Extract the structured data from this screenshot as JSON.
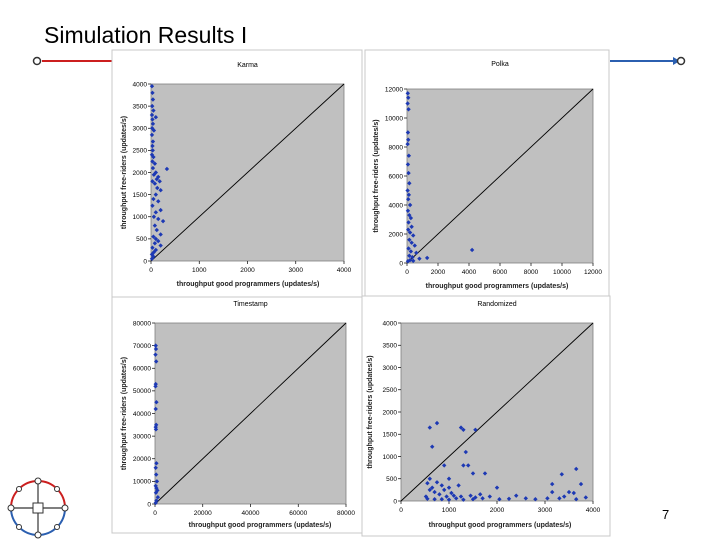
{
  "slide": {
    "title": "Simulation Results I",
    "page_number": "7",
    "accent_colors": {
      "red": "#cc1f1f",
      "blue": "#2b5fb0",
      "point": "#1d39b4",
      "plot_bg": "#c0c0c0"
    }
  },
  "chart_data": [
    {
      "type": "scatter",
      "title": "Karma",
      "xlabel": "throughput good programmers (updates/s)",
      "ylabel": "throughput free-riders (updates/s)",
      "xlim": [
        0,
        4000
      ],
      "ylim": [
        0,
        4000
      ],
      "xticks": [
        0,
        1000,
        2000,
        3000,
        4000
      ],
      "yticks": [
        0,
        500,
        1000,
        1500,
        2000,
        2500,
        3000,
        3500,
        4000
      ],
      "xtick_labels": [
        "0",
        "1000",
        "2000",
        "3000",
        "4000"
      ],
      "ytick_labels": [
        "0",
        "500",
        "1000",
        "1500",
        "2000",
        "2500",
        "3000",
        "3500",
        "4000"
      ],
      "diagonal": true,
      "points": [
        [
          20,
          3950
        ],
        [
          30,
          3800
        ],
        [
          40,
          3650
        ],
        [
          25,
          3500
        ],
        [
          50,
          3400
        ],
        [
          20,
          3300
        ],
        [
          30,
          3200
        ],
        [
          100,
          3250
        ],
        [
          40,
          3100
        ],
        [
          25,
          3000
        ],
        [
          60,
          2950
        ],
        [
          20,
          2850
        ],
        [
          40,
          2700
        ],
        [
          30,
          2600
        ],
        [
          35,
          2500
        ],
        [
          20,
          2400
        ],
        [
          50,
          2350
        ],
        [
          30,
          2250
        ],
        [
          80,
          2200
        ],
        [
          40,
          2100
        ],
        [
          100,
          2000
        ],
        [
          60,
          1950
        ],
        [
          150,
          1900
        ],
        [
          120,
          1850
        ],
        [
          30,
          1800
        ],
        [
          80,
          1750
        ],
        [
          200,
          1600
        ],
        [
          100,
          1500
        ],
        [
          50,
          1400
        ],
        [
          150,
          1350
        ],
        [
          30,
          1250
        ],
        [
          200,
          1150
        ],
        [
          100,
          1100
        ],
        [
          60,
          1000
        ],
        [
          150,
          950
        ],
        [
          250,
          900
        ],
        [
          80,
          800
        ],
        [
          120,
          700
        ],
        [
          200,
          600
        ],
        [
          50,
          550
        ],
        [
          100,
          500
        ],
        [
          150,
          450
        ],
        [
          80,
          400
        ],
        [
          200,
          350
        ],
        [
          30,
          300
        ],
        [
          100,
          250
        ],
        [
          60,
          200
        ],
        [
          20,
          150
        ],
        [
          50,
          100
        ],
        [
          20,
          50
        ],
        [
          330,
          2080
        ],
        [
          180,
          1800
        ],
        [
          130,
          1650
        ]
      ]
    },
    {
      "type": "scatter",
      "title": "Polka",
      "xlabel": "throughput good programmers (updates/s)",
      "ylabel": "throughput free-riders (updates/s)",
      "xlim": [
        0,
        12000
      ],
      "ylim": [
        0,
        12000
      ],
      "xticks": [
        0,
        2000,
        4000,
        6000,
        8000,
        10000,
        12000
      ],
      "yticks": [
        0,
        2000,
        4000,
        6000,
        8000,
        10000,
        12000
      ],
      "xtick_labels": [
        "0",
        "2000",
        "4000",
        "6000",
        "8000",
        "10000",
        "12000"
      ],
      "ytick_labels": [
        "0",
        "2000",
        "4000",
        "6000",
        "8000",
        "10000",
        "12000"
      ],
      "diagonal": true,
      "points": [
        [
          50,
          11700
        ],
        [
          80,
          11400
        ],
        [
          40,
          11000
        ],
        [
          100,
          10600
        ],
        [
          60,
          9000
        ],
        [
          80,
          8500
        ],
        [
          40,
          8200
        ],
        [
          120,
          7400
        ],
        [
          60,
          6800
        ],
        [
          100,
          6200
        ],
        [
          150,
          5500
        ],
        [
          40,
          5000
        ],
        [
          120,
          4700
        ],
        [
          80,
          4400
        ],
        [
          200,
          4000
        ],
        [
          60,
          3600
        ],
        [
          150,
          3300
        ],
        [
          250,
          3100
        ],
        [
          100,
          2800
        ],
        [
          300,
          2500
        ],
        [
          80,
          2300
        ],
        [
          200,
          2100
        ],
        [
          400,
          1900
        ],
        [
          150,
          1600
        ],
        [
          300,
          1400
        ],
        [
          500,
          1200
        ],
        [
          100,
          1000
        ],
        [
          250,
          800
        ],
        [
          600,
          700
        ],
        [
          150,
          500
        ],
        [
          350,
          400
        ],
        [
          800,
          300
        ],
        [
          200,
          200
        ],
        [
          60,
          120
        ],
        [
          400,
          150
        ],
        [
          1300,
          350
        ],
        [
          4200,
          900
        ]
      ]
    },
    {
      "type": "scatter",
      "title": "Timestamp",
      "xlabel": "throughput good programmers (updates/s)",
      "ylabel": "throughput free-riders (updates/s)",
      "xlim": [
        0,
        80000
      ],
      "ylim": [
        0,
        80000
      ],
      "xticks": [
        0,
        20000,
        40000,
        60000,
        80000
      ],
      "yticks": [
        0,
        10000,
        20000,
        30000,
        40000,
        50000,
        60000,
        70000,
        80000
      ],
      "xtick_labels": [
        "0",
        "20000",
        "40000",
        "60000",
        "80000"
      ],
      "ytick_labels": [
        "0",
        "10000",
        "20000",
        "30000",
        "40000",
        "50000",
        "60000",
        "70000",
        "80000"
      ],
      "diagonal": true,
      "points": [
        [
          300,
          70000
        ],
        [
          400,
          68500
        ],
        [
          200,
          66000
        ],
        [
          500,
          63000
        ],
        [
          300,
          53000
        ],
        [
          200,
          52000
        ],
        [
          600,
          45000
        ],
        [
          300,
          42000
        ],
        [
          500,
          35000
        ],
        [
          300,
          34000
        ],
        [
          400,
          33000
        ],
        [
          600,
          18000
        ],
        [
          300,
          16000
        ],
        [
          500,
          13000
        ],
        [
          800,
          10000
        ],
        [
          300,
          8000
        ],
        [
          600,
          7000
        ],
        [
          1000,
          6000
        ],
        [
          400,
          5000
        ],
        [
          1200,
          3000
        ],
        [
          600,
          1500
        ],
        [
          300,
          500
        ]
      ]
    },
    {
      "type": "scatter",
      "title": "Randomized",
      "xlabel": "throughput good programmers (updates/s)",
      "ylabel": "throughput free-riders (updates/s)",
      "xlim": [
        0,
        4000
      ],
      "ylim": [
        0,
        4000
      ],
      "xticks": [
        0,
        1000,
        2000,
        3000,
        4000
      ],
      "yticks": [
        0,
        500,
        1000,
        1500,
        2000,
        2500,
        3000,
        3500,
        4000
      ],
      "xtick_labels": [
        "0",
        "1000",
        "2000",
        "3000",
        "4000"
      ],
      "ytick_labels": [
        "0",
        "500",
        "1000",
        "1500",
        "2000",
        "2500",
        "3000",
        "3500",
        "4000"
      ],
      "diagonal": true,
      "points": [
        [
          600,
          1650
        ],
        [
          750,
          1750
        ],
        [
          1300,
          1600
        ],
        [
          1550,
          1600
        ],
        [
          650,
          1220
        ],
        [
          900,
          800
        ],
        [
          1300,
          800
        ],
        [
          1400,
          800
        ],
        [
          1500,
          620
        ],
        [
          1750,
          620
        ],
        [
          2000,
          300
        ],
        [
          2400,
          120
        ],
        [
          3150,
          380
        ],
        [
          3350,
          600
        ],
        [
          3650,
          720
        ],
        [
          3750,
          380
        ],
        [
          3500,
          200
        ],
        [
          3300,
          60
        ],
        [
          3600,
          180
        ],
        [
          550,
          400
        ],
        [
          600,
          250
        ],
        [
          650,
          300
        ],
        [
          700,
          200
        ],
        [
          800,
          150
        ],
        [
          900,
          250
        ],
        [
          950,
          100
        ],
        [
          1000,
          300
        ],
        [
          1100,
          120
        ],
        [
          1150,
          60
        ],
        [
          600,
          500
        ],
        [
          750,
          420
        ],
        [
          850,
          350
        ],
        [
          1000,
          500
        ],
        [
          1050,
          180
        ],
        [
          1200,
          350
        ],
        [
          1250,
          100
        ],
        [
          1450,
          120
        ],
        [
          1550,
          80
        ],
        [
          1650,
          150
        ],
        [
          520,
          100
        ],
        [
          550,
          50
        ],
        [
          700,
          40
        ],
        [
          850,
          40
        ],
        [
          1000,
          30
        ],
        [
          1300,
          30
        ],
        [
          1500,
          40
        ],
        [
          1700,
          60
        ],
        [
          1850,
          100
        ],
        [
          2050,
          40
        ],
        [
          2250,
          50
        ],
        [
          2600,
          60
        ],
        [
          2800,
          40
        ],
        [
          3050,
          60
        ],
        [
          3150,
          200
        ],
        [
          3400,
          100
        ],
        [
          3650,
          40
        ],
        [
          3850,
          80
        ],
        [
          1350,
          1100
        ],
        [
          1250,
          1650
        ]
      ]
    }
  ]
}
